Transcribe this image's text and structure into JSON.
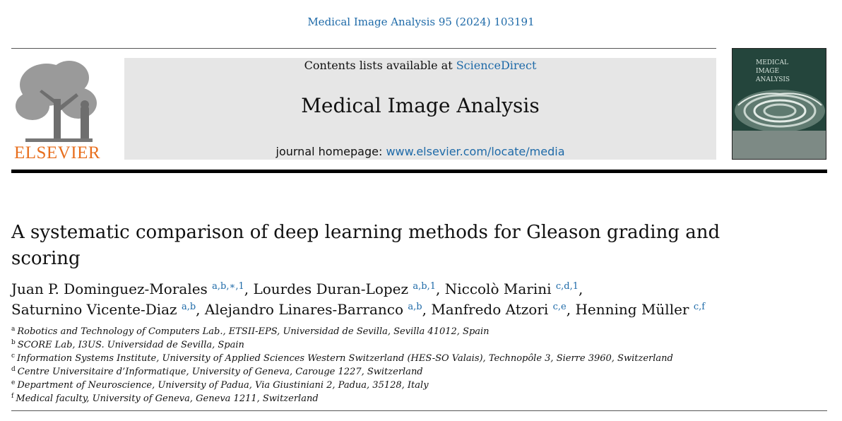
{
  "header": {
    "journal_ref": "Medical Image Analysis 95 (2024) 103191",
    "contents_prefix": "Contents lists available at ",
    "sciencedirect": "ScienceDirect",
    "journal_title": "Medical Image Analysis",
    "homepage_prefix": "journal homepage: ",
    "homepage_url": "www.elsevier.com/locate/media",
    "publisher": "ELSEVIER"
  },
  "cover": {
    "title_lines": [
      "MEDICAL",
      "IMAGE",
      "ANALYSIS"
    ]
  },
  "article": {
    "title": "A systematic comparison of deep learning methods for Gleason grading and scoring"
  },
  "authors": [
    {
      "name": "Juan P. Dominguez-Morales",
      "sup": "a,b,∗,1",
      "sep": ", "
    },
    {
      "name": "Lourdes Duran-Lopez",
      "sup": "a,b,1",
      "sep": ", "
    },
    {
      "name": "Niccolò Marini",
      "sup": "c,d,1",
      "sep": ","
    },
    {
      "name": "Saturnino Vicente-Diaz",
      "sup": "a,b",
      "sep": ", "
    },
    {
      "name": "Alejandro Linares-Barranco",
      "sup": "a,b",
      "sep": ", "
    },
    {
      "name": "Manfredo Atzori",
      "sup": "c,e",
      "sep": ", "
    },
    {
      "name": "Henning Müller",
      "sup": "c,f",
      "sep": ""
    }
  ],
  "affiliations": [
    {
      "label": "a",
      "text": "Robotics and Technology of Computers Lab., ETSII-EPS, Universidad de Sevilla, Sevilla 41012, Spain"
    },
    {
      "label": "b",
      "text": "SCORE Lab, I3US. Universidad de Sevilla, Spain"
    },
    {
      "label": "c",
      "text": "Information Systems Institute, University of Applied Sciences Western Switzerland (HES-SO Valais), Technopôle 3, Sierre 3960, Switzerland"
    },
    {
      "label": "d",
      "text": "Centre Universitaire d’Informatique, University of Geneva, Carouge 1227, Switzerland"
    },
    {
      "label": "e",
      "text": "Department of Neuroscience, University of Padua, Via Giustiniani 2, Padua, 35128, Italy"
    },
    {
      "label": "f",
      "text": "Medical faculty, University of Geneva, Geneva 1211, Switzerland"
    }
  ]
}
